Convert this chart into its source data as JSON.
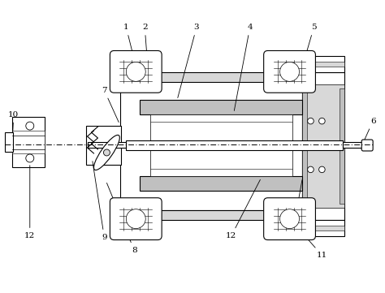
{
  "bg_color": "#ffffff",
  "line_color": "#000000",
  "gray_fill": "#c0c0c0",
  "light_gray": "#d8d8d8",
  "figsize": [
    4.74,
    3.61
  ],
  "dpi": 100
}
